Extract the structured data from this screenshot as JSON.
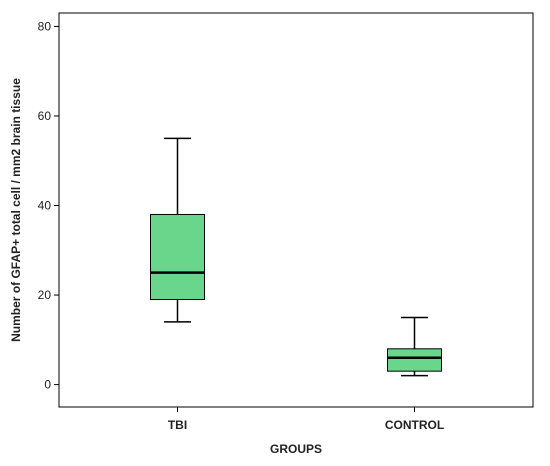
{
  "chart_data": {
    "type": "box",
    "xlabel": "GROUPS",
    "ylabel": "Number of GFAP+ total cell / mm2 brain tissue",
    "ylim": [
      -5,
      83
    ],
    "yticks": [
      0,
      20,
      40,
      60,
      80
    ],
    "grid": false,
    "categories": [
      "TBI",
      "CONTROL"
    ],
    "boxes": [
      {
        "category": "TBI",
        "min": 14,
        "q1": 19,
        "median": 25,
        "q3": 38,
        "max": 55
      },
      {
        "category": "CONTROL",
        "min": 2,
        "q1": 3,
        "median": 6,
        "q3": 8,
        "max": 15
      }
    ],
    "box_color": "#6ad68b"
  }
}
